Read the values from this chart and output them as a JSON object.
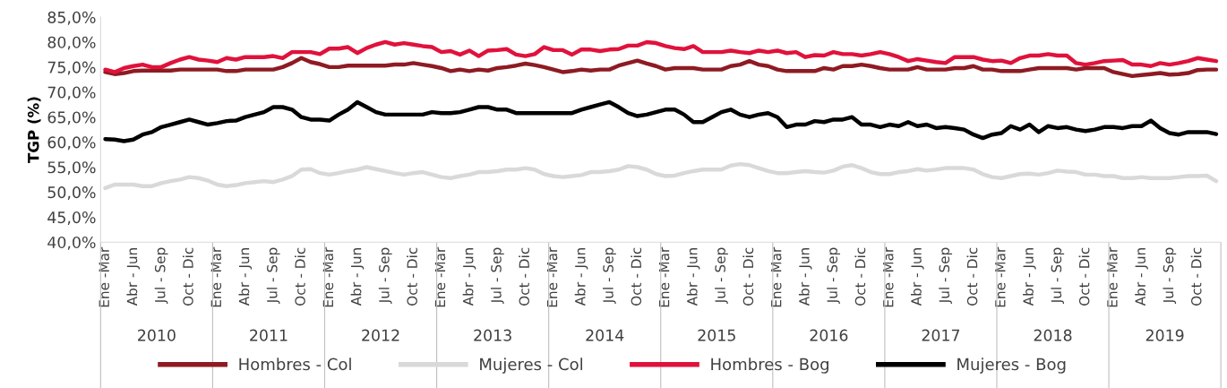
{
  "chart_data": {
    "type": "line",
    "ylabel": "TGP (%)",
    "categories": [
      "Ene -Mar",
      null,
      null,
      "Abr - Jun",
      null,
      null,
      "Jul - Sep",
      null,
      null,
      "Oct - Dic",
      null,
      null,
      "Ene -Mar",
      null,
      null,
      "Abr - Jun",
      null,
      null,
      "Jul - Sep",
      null,
      null,
      "Oct - Dic",
      null,
      null,
      "Ene -Mar",
      null,
      null,
      "Abr - Jun",
      null,
      null,
      "Jul - Sep",
      null,
      null,
      "Oct - Dic",
      null,
      null,
      "Ene -Mar",
      null,
      null,
      "Abr - Jun",
      null,
      null,
      "Jul - Sep",
      null,
      null,
      "Oct - Dic",
      null,
      null,
      "Ene -Mar",
      null,
      null,
      "Abr - Jun",
      null,
      null,
      "Jul - Sep",
      null,
      null,
      "Oct - Dic",
      null,
      null,
      "Ene -Mar",
      null,
      null,
      "Abr - Jun",
      null,
      null,
      "Jul - Sep",
      null,
      null,
      "Oct - Dic",
      null,
      null,
      "Ene -Mar",
      null,
      null,
      "Abr - Jun",
      null,
      null,
      "Jul - Sep",
      null,
      null,
      "Oct - Dic",
      null,
      null,
      "Ene -Mar",
      null,
      null,
      "Abr - Jun",
      null,
      null,
      "Jul - Sep",
      null,
      null,
      "Oct - Dic",
      null,
      null,
      "Ene -Mar",
      null,
      null,
      "Abr - Jun",
      null,
      null,
      "Jul - Sep",
      null,
      null,
      "Oct - Dic",
      null,
      null,
      "Ene -Mar",
      null,
      null,
      "Abr - Jun",
      null,
      null,
      "Jul - Sep",
      null,
      null,
      "Oct - Dic",
      null,
      null
    ],
    "annotations": [
      "2010",
      "2011",
      "2012",
      "2013",
      "2014",
      "2015",
      "2016",
      "2017",
      "2018",
      "2019"
    ],
    "series": [
      {
        "name": "Hombres - Col",
        "color": "#8e1b22",
        "values": [
          74,
          73.6,
          73.8,
          74.2,
          74.3,
          74.3,
          74.3,
          74.3,
          74.5,
          74.5,
          74.5,
          74.5,
          74.5,
          74.2,
          74.2,
          74.5,
          74.5,
          74.5,
          74.5,
          75,
          75.8,
          76.8,
          76,
          75.6,
          75,
          75,
          75.3,
          75.3,
          75.3,
          75.3,
          75.3,
          75.5,
          75.5,
          75.8,
          75.5,
          75.2,
          74.8,
          74.2,
          74.5,
          74.2,
          74.5,
          74.3,
          74.8,
          75,
          75.3,
          75.7,
          75.4,
          75,
          74.5,
          74,
          74.2,
          74.5,
          74.3,
          74.5,
          74.5,
          75.3,
          75.8,
          76.3,
          75.7,
          75.2,
          74.5,
          74.8,
          74.8,
          74.8,
          74.5,
          74.5,
          74.5,
          75.2,
          75.5,
          76.2,
          75.5,
          75.2,
          74.5,
          74.2,
          74.2,
          74.2,
          74.2,
          74.8,
          74.5,
          75.2,
          75.2,
          75.5,
          75.2,
          74.8,
          74.5,
          74.5,
          74.5,
          75,
          74.5,
          74.5,
          74.5,
          74.8,
          74.8,
          75.2,
          74.5,
          74.5,
          74.2,
          74.2,
          74.2,
          74.5,
          74.8,
          74.8,
          74.8,
          74.8,
          74.5,
          74.8,
          74.8,
          74.8,
          74,
          73.6,
          73.2,
          73.4,
          73.6,
          73.8,
          73.5,
          73.6,
          73.8,
          74.4,
          74.5,
          74.5
        ]
      },
      {
        "name": "Mujeres - Col",
        "color": "#d9d9d9",
        "values": [
          50.8,
          51.5,
          51.5,
          51.5,
          51.2,
          51.2,
          51.8,
          52.2,
          52.5,
          53,
          52.8,
          52.3,
          51.5,
          51.2,
          51.4,
          51.8,
          52,
          52.2,
          52,
          52.5,
          53.2,
          54.5,
          54.6,
          53.8,
          53.5,
          53.8,
          54.2,
          54.5,
          55,
          54.6,
          54.2,
          53.8,
          53.5,
          53.8,
          54,
          53.5,
          53,
          52.8,
          53.2,
          53.5,
          54,
          54,
          54.2,
          54.5,
          54.5,
          54.8,
          54.5,
          53.6,
          53.2,
          53,
          53.2,
          53.4,
          54,
          54,
          54.2,
          54.5,
          55.2,
          55,
          54.5,
          53.6,
          53.2,
          53.3,
          53.8,
          54.2,
          54.5,
          54.5,
          54.5,
          55.3,
          55.6,
          55.4,
          54.8,
          54.2,
          53.8,
          53.8,
          54,
          54.2,
          54,
          53.9,
          54.3,
          55.1,
          55.4,
          54.8,
          54,
          53.6,
          53.6,
          54,
          54.2,
          54.6,
          54.3,
          54.5,
          54.8,
          54.8,
          54.8,
          54.5,
          53.6,
          53,
          52.8,
          53.2,
          53.6,
          53.7,
          53.5,
          53.8,
          54.3,
          54.1,
          54,
          53.5,
          53.5,
          53.2,
          53.2,
          52.8,
          52.8,
          53,
          52.8,
          52.8,
          52.8,
          53,
          53.2,
          53.2,
          53.3,
          52.2
        ]
      },
      {
        "name": "Hombres - Bog",
        "color": "#e0123c",
        "values": [
          74.5,
          74,
          74.8,
          75.2,
          75.5,
          75,
          75,
          75.8,
          76.5,
          77,
          76.5,
          76.3,
          76,
          76.8,
          76.5,
          77,
          77,
          77,
          77.2,
          76.8,
          78,
          78,
          78,
          77.6,
          78.7,
          78.7,
          79,
          77.8,
          78.8,
          79.5,
          80,
          79.5,
          79.8,
          79.5,
          79.2,
          79,
          78,
          78.2,
          77.5,
          78.3,
          77.2,
          78.3,
          78.4,
          78.6,
          77.5,
          77.2,
          77.6,
          79,
          78.4,
          78.4,
          77.5,
          78.5,
          78.5,
          78.2,
          78.5,
          78.6,
          79.3,
          79.3,
          80,
          79.8,
          79.2,
          78.8,
          78.6,
          79.2,
          78,
          78,
          78,
          78.3,
          78,
          77.8,
          78.3,
          78,
          78.3,
          77.8,
          78,
          77,
          77.4,
          77.3,
          78,
          77.6,
          77.6,
          77.3,
          77.6,
          78,
          77.6,
          77,
          76.2,
          76.6,
          76.3,
          76,
          75.8,
          77,
          77,
          77,
          76.5,
          76.2,
          76.3,
          75.8,
          76.8,
          77.3,
          77.3,
          77.6,
          77.3,
          77.3,
          75.8,
          75.5,
          75.8,
          76.2,
          76.3,
          76.4,
          75.5,
          75.5,
          75.2,
          75.8,
          75.5,
          75.8,
          76.2,
          76.8,
          76.5,
          76.2
        ]
      },
      {
        "name": "Mujeres - Bog",
        "color": "#000000",
        "values": [
          60.6,
          60.5,
          60.2,
          60.5,
          61.5,
          62,
          63,
          63.5,
          64,
          64.5,
          64,
          63.5,
          63.8,
          64.2,
          64.3,
          65,
          65.5,
          66,
          67,
          67,
          66.5,
          65,
          64.5,
          64.5,
          64.3,
          65.5,
          66.5,
          68,
          67,
          66,
          65.5,
          65.5,
          65.5,
          65.5,
          65.5,
          66,
          65.8,
          65.8,
          66,
          66.5,
          67,
          67,
          66.5,
          66.5,
          65.8,
          65.8,
          65.8,
          65.8,
          65.8,
          65.8,
          65.8,
          66.5,
          67,
          67.5,
          68,
          67,
          65.8,
          65.2,
          65.5,
          66,
          66.5,
          66.5,
          65.5,
          64,
          64,
          65,
          66,
          66.5,
          65.5,
          65,
          65.5,
          65.8,
          65,
          63,
          63.5,
          63.5,
          64.2,
          64,
          64.5,
          64.5,
          65,
          63.5,
          63.5,
          63,
          63.5,
          63.2,
          64,
          63.2,
          63.5,
          62.8,
          63,
          62.8,
          62.5,
          61.5,
          60.8,
          61.5,
          61.8,
          63.2,
          62.5,
          63.5,
          62,
          63.2,
          62.8,
          63,
          62.5,
          62.2,
          62.5,
          63,
          63,
          62.8,
          63.2,
          63.2,
          64.3,
          62.8,
          61.8,
          61.5,
          62,
          62,
          62,
          61.6
        ]
      }
    ],
    "ylim": [
      40,
      85
    ],
    "yticks": [
      {
        "value": 40,
        "label": "40,0%"
      },
      {
        "value": 45,
        "label": "45,0%"
      },
      {
        "value": 50,
        "label": "50,0%"
      },
      {
        "value": 55,
        "label": "55,0%"
      },
      {
        "value": 60,
        "label": "60,0%"
      },
      {
        "value": 65,
        "label": "65,0%"
      },
      {
        "value": 70,
        "label": "70,0%"
      },
      {
        "value": 75,
        "label": "75,0%"
      },
      {
        "value": 80,
        "label": "80,0%"
      },
      {
        "value": 85,
        "label": "85,0%"
      }
    ],
    "grid": false,
    "legend": "bottom",
    "marker": "none",
    "line_style": "solid"
  }
}
